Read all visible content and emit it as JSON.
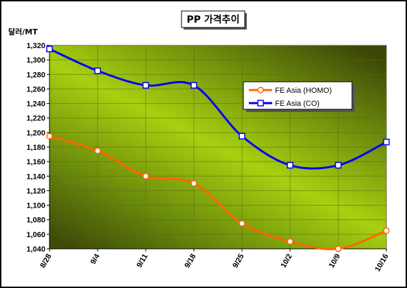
{
  "chart_data": {
    "type": "line",
    "title": "PP 가격추이",
    "ylabel": "달러/MT",
    "xlabel": "",
    "categories": [
      "8/28",
      "9/4",
      "9/11",
      "9/18",
      "9/25",
      "10/2",
      "10/9",
      "10/16"
    ],
    "ylim": [
      1040,
      1320
    ],
    "ytick_step": 20,
    "yticks": [
      "1,040",
      "1,060",
      "1,080",
      "1,100",
      "1,120",
      "1,140",
      "1,160",
      "1,180",
      "1,200",
      "1,220",
      "1,240",
      "1,260",
      "1,280",
      "1,300",
      "1,320"
    ],
    "grid": true,
    "legend_position": "upper-right",
    "series": [
      {
        "name": "FE Asia (HOMO)",
        "color": "#ff6600",
        "marker": "circle",
        "values": [
          1195,
          1175,
          1140,
          1130,
          1075,
          1050,
          1040,
          1065
        ]
      },
      {
        "name": "FE Asia (CO)",
        "color": "#0000ff",
        "marker": "square",
        "values": [
          1315,
          1285,
          1265,
          1265,
          1195,
          1155,
          1155,
          1187
        ]
      }
    ]
  }
}
